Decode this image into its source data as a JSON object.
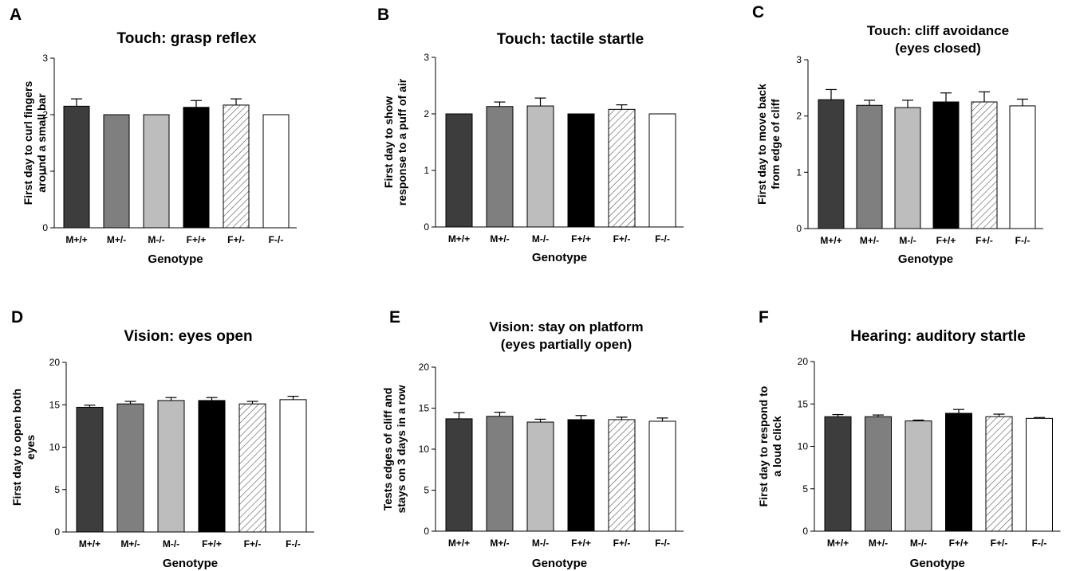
{
  "figure": {
    "fill_colors": [
      "#3d3d3d",
      "#7f7f7f",
      "#bdbdbd",
      "#000000",
      "hatched",
      "#ffffff"
    ]
  },
  "chart_data": [
    {
      "panel": "A",
      "type": "bar",
      "title": [
        "Touch: grasp reflex"
      ],
      "ylabel": [
        "First day to curl fingers",
        "around a small bar"
      ],
      "xlabel": "Genotype",
      "categories": [
        "M+/+",
        "M+/-",
        "M-/-",
        "F+/+",
        "F+/-",
        "F-/-"
      ],
      "values": [
        2.15,
        2.0,
        2.0,
        2.13,
        2.17,
        2.0
      ],
      "errors": [
        0.13,
        0,
        0,
        0.12,
        0.11,
        0
      ],
      "ylim": [
        0,
        3
      ],
      "yticks": [
        0,
        1,
        2,
        3
      ],
      "grid": false,
      "legend": "none"
    },
    {
      "panel": "B",
      "type": "bar",
      "title": [
        "Touch: tactile startle"
      ],
      "ylabel": [
        "First day to show",
        "response to a puff of air"
      ],
      "xlabel": "Genotype",
      "categories": [
        "M+/+",
        "M+/-",
        "M-/-",
        "F+/+",
        "F+/-",
        "F-/-"
      ],
      "values": [
        2.0,
        2.13,
        2.14,
        2.0,
        2.08,
        2.0
      ],
      "errors": [
        0,
        0.08,
        0.14,
        0,
        0.08,
        0
      ],
      "ylim": [
        0,
        3
      ],
      "yticks": [
        0,
        1,
        2,
        3
      ],
      "grid": false,
      "legend": "none"
    },
    {
      "panel": "C",
      "type": "bar",
      "title": [
        "Touch: cliff avoidance",
        "(eyes closed)"
      ],
      "ylabel": [
        "First day to move back",
        "from edge of cliff"
      ],
      "xlabel": "Genotype",
      "categories": [
        "M+/+",
        "M+/-",
        "M-/-",
        "F+/+",
        "F+/-",
        "F-/-"
      ],
      "values": [
        2.29,
        2.19,
        2.15,
        2.25,
        2.25,
        2.18
      ],
      "errors": [
        0.18,
        0.09,
        0.13,
        0.16,
        0.18,
        0.12
      ],
      "ylim": [
        0,
        3
      ],
      "yticks": [
        0,
        1,
        2,
        3
      ],
      "grid": false,
      "legend": "none"
    },
    {
      "panel": "D",
      "type": "bar",
      "title": [
        "Vision: eyes open"
      ],
      "ylabel": [
        "First day to open both",
        "eyes"
      ],
      "xlabel": "Genotype",
      "categories": [
        "M+/+",
        "M+/-",
        "M-/-",
        "F+/+",
        "F+/-",
        "F-/-"
      ],
      "values": [
        14.7,
        15.1,
        15.5,
        15.5,
        15.1,
        15.6
      ],
      "errors": [
        0.25,
        0.3,
        0.35,
        0.35,
        0.3,
        0.4
      ],
      "ylim": [
        0,
        20
      ],
      "yticks": [
        0,
        5,
        10,
        15,
        20
      ],
      "grid": false,
      "legend": "none"
    },
    {
      "panel": "E",
      "type": "bar",
      "title": [
        "Vision: stay on platform",
        "(eyes partially open)"
      ],
      "ylabel": [
        "Tests edges of cliff and",
        "stays on 3 days in a row"
      ],
      "xlabel": "Genotype",
      "categories": [
        "M+/+",
        "M+/-",
        "M-/-",
        "F+/+",
        "F+/-",
        "F-/-"
      ],
      "values": [
        13.7,
        14.0,
        13.3,
        13.6,
        13.6,
        13.4
      ],
      "errors": [
        0.75,
        0.5,
        0.35,
        0.5,
        0.3,
        0.4
      ],
      "ylim": [
        0,
        20
      ],
      "yticks": [
        0,
        5,
        10,
        15,
        20
      ],
      "grid": false,
      "legend": "none"
    },
    {
      "panel": "F",
      "type": "bar",
      "title": [
        "Hearing: auditory startle"
      ],
      "ylabel": [
        "First day to respond to",
        "a loud click"
      ],
      "xlabel": "Genotype",
      "categories": [
        "M+/+",
        "M+/-",
        "M-/-",
        "F+/+",
        "F+/-",
        "F-/-"
      ],
      "values": [
        13.5,
        13.5,
        13.0,
        13.9,
        13.5,
        13.3
      ],
      "errors": [
        0.25,
        0.2,
        0.1,
        0.45,
        0.3,
        0.1
      ],
      "ylim": [
        0,
        20
      ],
      "yticks": [
        0,
        5,
        10,
        15,
        20
      ],
      "grid": false,
      "legend": "none"
    }
  ]
}
